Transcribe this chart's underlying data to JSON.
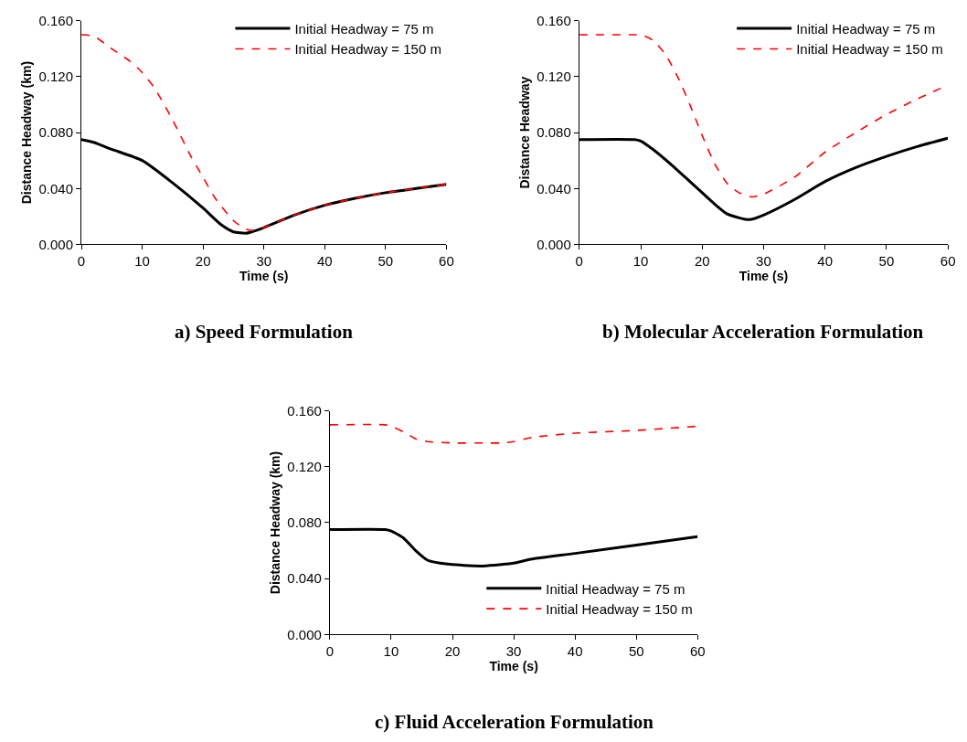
{
  "chart_data": [
    {
      "type": "line",
      "title": "a) Speed Formulation",
      "xlabel": "Time (s)",
      "ylabel": "Distance Headway (km)",
      "xlim": [
        0,
        60
      ],
      "xticks": [
        0,
        10,
        20,
        30,
        40,
        50,
        60
      ],
      "ylim": [
        0,
        0.16
      ],
      "yticks": [
        {
          "value": 0,
          "label": "0.000"
        },
        {
          "value": 0.04,
          "label": "0.040"
        },
        {
          "value": 0.08,
          "label": "0.080"
        },
        {
          "value": 0.12,
          "label": "0.120"
        },
        {
          "value": 0.16,
          "label": "0.160"
        }
      ],
      "grid": false,
      "legend": "top right",
      "series": [
        {
          "name": "Initial Headway = 75 m",
          "color": "#000000",
          "line_style": "solid",
          "x": [
            0,
            2,
            5,
            10,
            15,
            20,
            23,
            25,
            27,
            28,
            30,
            35,
            40,
            45,
            50,
            55,
            60
          ],
          "values": [
            0.075,
            0.073,
            0.068,
            0.06,
            0.044,
            0.026,
            0.014,
            0.009,
            0.008,
            0.009,
            0.012,
            0.021,
            0.028,
            0.033,
            0.037,
            0.04,
            0.043
          ]
        },
        {
          "name": "Initial Headway = 150 m",
          "color": "#ff0000",
          "line_style": "dashed",
          "x": [
            0,
            2,
            5,
            8,
            10,
            12,
            15,
            18,
            20,
            22,
            25,
            27,
            28,
            30,
            35,
            40,
            45,
            50,
            55,
            60
          ],
          "values": [
            0.15,
            0.149,
            0.14,
            0.131,
            0.123,
            0.112,
            0.089,
            0.063,
            0.048,
            0.033,
            0.017,
            0.011,
            0.01,
            0.012,
            0.021,
            0.028,
            0.033,
            0.037,
            0.04,
            0.043
          ]
        }
      ]
    },
    {
      "type": "line",
      "title": "b) Molecular Acceleration Formulation",
      "xlabel": "Time (s)",
      "ylabel": "Distance Headway",
      "xlim": [
        0,
        60
      ],
      "xticks": [
        0,
        10,
        20,
        30,
        40,
        50,
        60
      ],
      "ylim": [
        0,
        0.16
      ],
      "yticks": [
        {
          "value": 0,
          "label": "0.000"
        },
        {
          "value": 0.04,
          "label": "0.040"
        },
        {
          "value": 0.08,
          "label": "0.080"
        },
        {
          "value": 0.12,
          "label": "0.120"
        },
        {
          "value": 0.16,
          "label": "0.160"
        }
      ],
      "grid": false,
      "legend": "top right",
      "series": [
        {
          "name": "Initial Headway = 75 m",
          "color": "#000000",
          "line_style": "solid",
          "x": [
            0,
            9,
            10,
            12,
            15,
            18,
            20,
            22,
            24,
            26,
            27,
            28,
            30,
            35,
            40,
            45,
            50,
            55,
            60
          ],
          "values": [
            0.075,
            0.075,
            0.074,
            0.068,
            0.057,
            0.045,
            0.037,
            0.029,
            0.022,
            0.019,
            0.018,
            0.018,
            0.021,
            0.032,
            0.045,
            0.055,
            0.063,
            0.07,
            0.076
          ]
        },
        {
          "name": "Initial Headway = 150 m",
          "color": "#ff0000",
          "line_style": "dashed",
          "x": [
            0,
            9,
            10,
            12,
            14,
            16,
            18,
            20,
            22,
            24,
            26,
            28,
            30,
            35,
            40,
            45,
            50,
            55,
            60
          ],
          "values": [
            0.15,
            0.15,
            0.15,
            0.146,
            0.136,
            0.12,
            0.1,
            0.078,
            0.058,
            0.044,
            0.037,
            0.034,
            0.036,
            0.048,
            0.066,
            0.08,
            0.093,
            0.104,
            0.114
          ]
        }
      ]
    },
    {
      "type": "line",
      "title": "c) Fluid Acceleration Formulation",
      "xlabel": "Time (s)",
      "ylabel": "Distance Headway (km)",
      "xlim": [
        0,
        60
      ],
      "xticks": [
        0,
        10,
        20,
        30,
        40,
        50,
        60
      ],
      "ylim": [
        0,
        0.16
      ],
      "yticks": [
        {
          "value": 0,
          "label": "0.000"
        },
        {
          "value": 0.04,
          "label": "0.040"
        },
        {
          "value": 0.08,
          "label": "0.080"
        },
        {
          "value": 0.12,
          "label": "0.120"
        },
        {
          "value": 0.16,
          "label": "0.160"
        }
      ],
      "grid": false,
      "legend": "bottom right",
      "series": [
        {
          "name": "Initial Headway = 75 m",
          "color": "#000000",
          "line_style": "solid",
          "x": [
            0,
            9,
            10,
            12,
            14,
            16,
            18,
            20,
            25,
            28,
            30,
            33,
            40,
            50,
            60
          ],
          "values": [
            0.075,
            0.075,
            0.074,
            0.069,
            0.06,
            0.053,
            0.051,
            0.05,
            0.049,
            0.05,
            0.051,
            0.054,
            0.058,
            0.064,
            0.07
          ]
        },
        {
          "name": "Initial Headway = 150 m",
          "color": "#ff0000",
          "line_style": "dashed",
          "x": [
            0,
            9,
            10,
            12,
            14,
            16,
            20,
            25,
            28,
            30,
            33,
            40,
            50,
            60
          ],
          "values": [
            0.15,
            0.15,
            0.149,
            0.145,
            0.14,
            0.138,
            0.137,
            0.137,
            0.137,
            0.138,
            0.141,
            0.144,
            0.146,
            0.149
          ]
        }
      ]
    }
  ]
}
